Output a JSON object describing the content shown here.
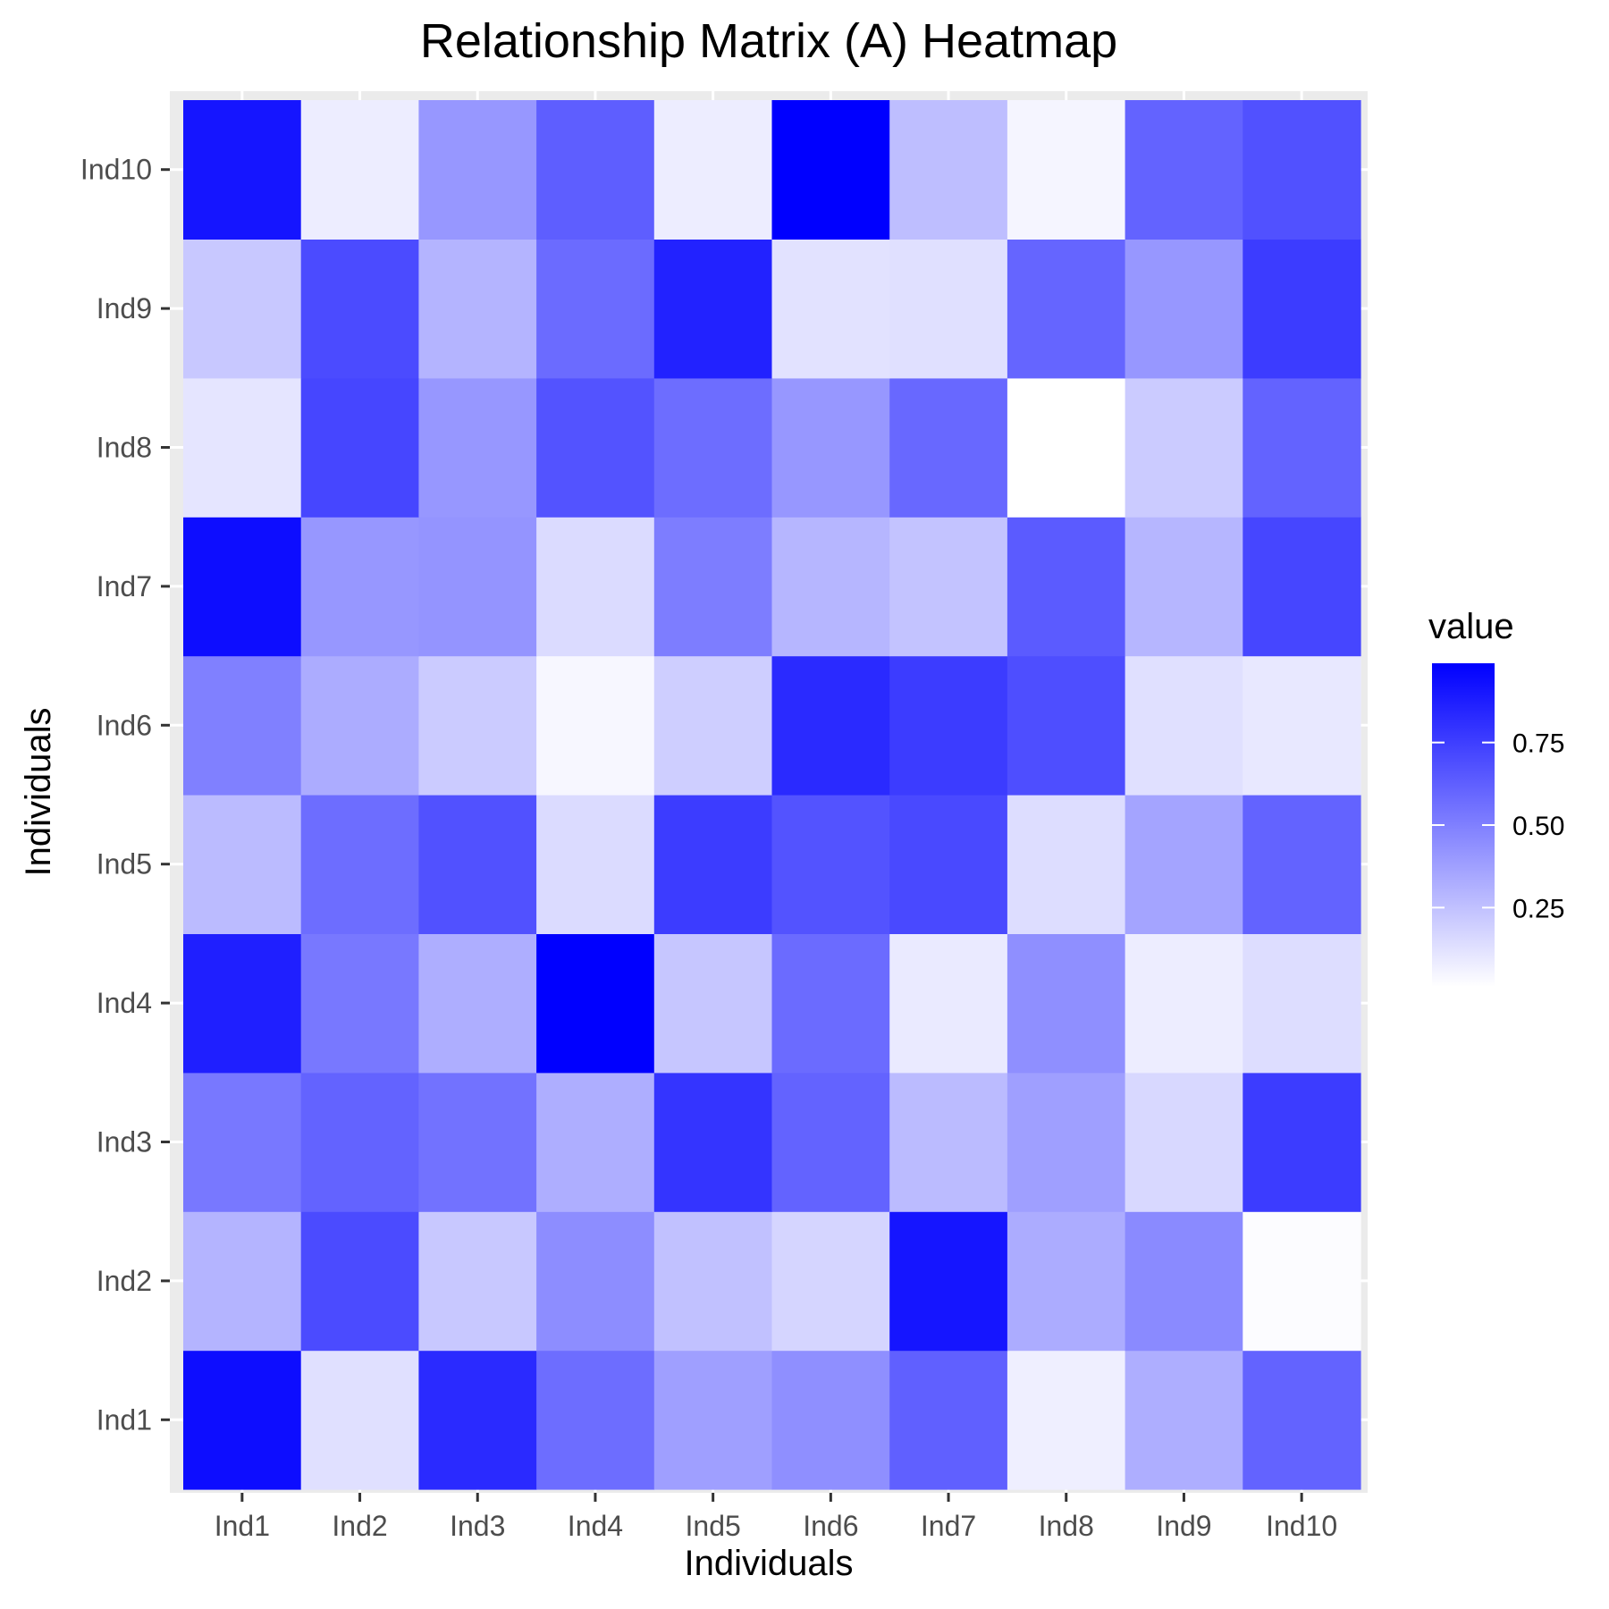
{
  "chart_data": {
    "type": "heatmap",
    "title": "Relationship Matrix (A) Heatmap",
    "xlabel": "Individuals",
    "ylabel": "Individuals",
    "x_categories": [
      "Ind1",
      "Ind2",
      "Ind3",
      "Ind4",
      "Ind5",
      "Ind6",
      "Ind7",
      "Ind8",
      "Ind9",
      "Ind10"
    ],
    "y_categories": [
      "Ind1",
      "Ind2",
      "Ind3",
      "Ind4",
      "Ind5",
      "Ind6",
      "Ind7",
      "Ind8",
      "Ind9",
      "Ind10"
    ],
    "values_by_row": [
      [
        0.94,
        0.13,
        0.83,
        0.57,
        0.38,
        0.44,
        0.62,
        0.07,
        0.32,
        0.61
      ],
      [
        0.3,
        0.7,
        0.22,
        0.45,
        0.25,
        0.17,
        0.91,
        0.33,
        0.46,
        0.02
      ],
      [
        0.53,
        0.61,
        0.55,
        0.32,
        0.79,
        0.61,
        0.27,
        0.38,
        0.16,
        0.76
      ],
      [
        0.87,
        0.53,
        0.32,
        0.99,
        0.23,
        0.58,
        0.09,
        0.44,
        0.08,
        0.14
      ],
      [
        0.27,
        0.57,
        0.68,
        0.15,
        0.76,
        0.67,
        0.71,
        0.14,
        0.36,
        0.61
      ],
      [
        0.5,
        0.33,
        0.21,
        0.04,
        0.2,
        0.83,
        0.76,
        0.69,
        0.13,
        0.1
      ],
      [
        0.94,
        0.41,
        0.42,
        0.15,
        0.51,
        0.29,
        0.24,
        0.64,
        0.29,
        0.72
      ],
      [
        0.11,
        0.72,
        0.41,
        0.67,
        0.57,
        0.41,
        0.59,
        0.01,
        0.21,
        0.61
      ],
      [
        0.22,
        0.7,
        0.3,
        0.58,
        0.86,
        0.12,
        0.13,
        0.6,
        0.41,
        0.76
      ],
      [
        0.91,
        0.08,
        0.41,
        0.63,
        0.08,
        0.99,
        0.26,
        0.05,
        0.61,
        0.68
      ]
    ],
    "color_scale": {
      "low": "#ffffff",
      "high": "#0000ff",
      "domain": [
        0.01,
        0.99
      ]
    },
    "legend": {
      "title": "value",
      "ticks": [
        0.25,
        0.5,
        0.75
      ],
      "tick_labels": [
        "0.25",
        "0.50",
        "0.75"
      ],
      "position": "right"
    },
    "grid": true,
    "panel_background": "#ebebeb"
  }
}
